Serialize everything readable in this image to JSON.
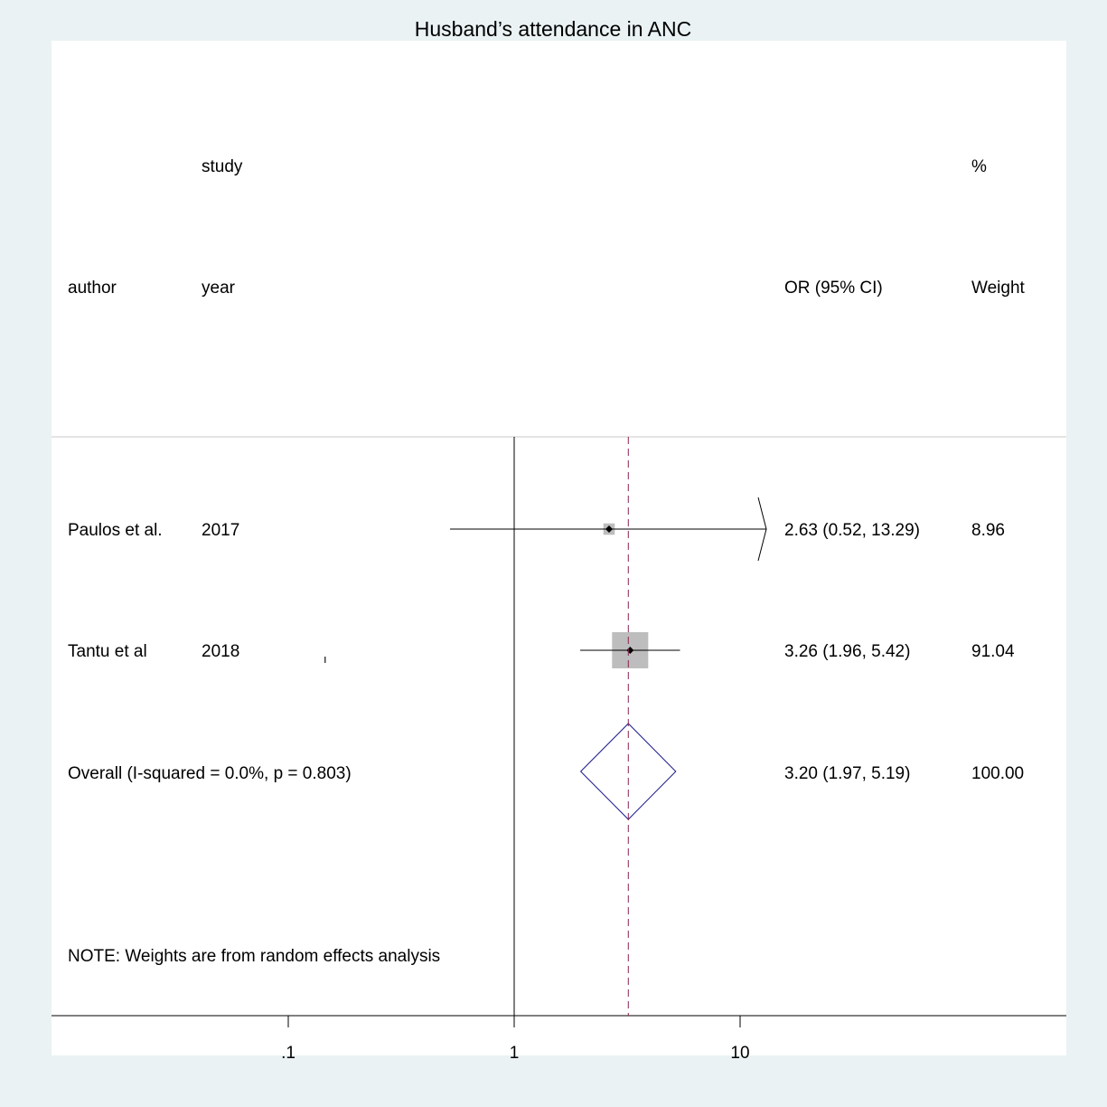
{
  "chart_data": {
    "type": "forest",
    "title": "Husband’s attendance in ANC",
    "scale": "log",
    "headers": {
      "col1_top": "study",
      "col1_author": "author",
      "col1_year": "year",
      "effect": "OR (95% CI)",
      "weight_top": "%",
      "weight": "Weight"
    },
    "studies": [
      {
        "author": "Paulos et al.",
        "year": "2017",
        "or": 2.63,
        "lo": 0.52,
        "hi": 13.29,
        "weight": 8.96,
        "label": "2.63 (0.52, 13.29)",
        "weight_label": "8.96",
        "ci_arrow_right": true
      },
      {
        "author": "Tantu et al",
        "year": "2018",
        "or": 3.26,
        "lo": 1.96,
        "hi": 5.42,
        "weight": 91.04,
        "label": "3.26 (1.96, 5.42)",
        "weight_label": "91.04",
        "ci_arrow_right": false
      }
    ],
    "overall": {
      "label": "Overall (I-squared = 0.0%, p = 0.803)",
      "or": 3.2,
      "lo": 1.97,
      "hi": 5.19,
      "effect_label": "3.20 (1.97, 5.19)",
      "weight_label": "100.00"
    },
    "note": "NOTE: Weights are from random effects analysis",
    "x_ticks": [
      {
        "value": 0.1,
        "label": ".1"
      },
      {
        "value": 1,
        "label": "1"
      },
      {
        "value": 10,
        "label": "10"
      }
    ],
    "colors": {
      "background": "#eaf2f3",
      "panel": "#ffffff",
      "box": "#bdbdbd",
      "diamond": "#1a1a8c",
      "overall_line": "#8b2252"
    }
  }
}
